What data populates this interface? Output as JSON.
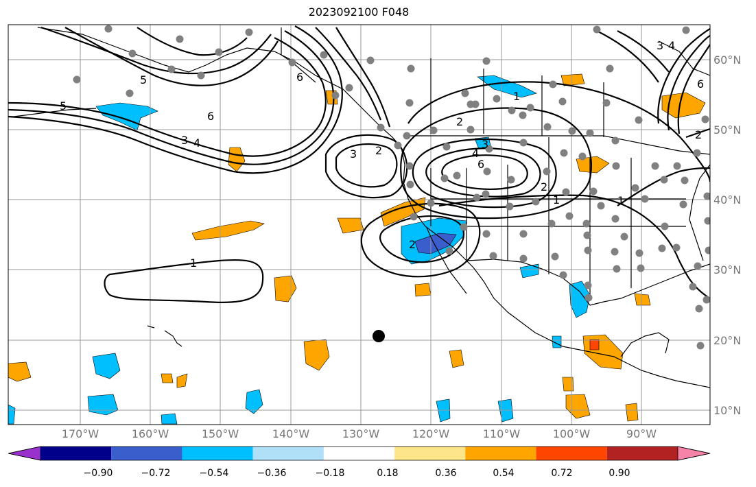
{
  "title": "2023092100 F048",
  "lat_labels": [
    "60°N",
    "50°N",
    "40°N",
    "30°N",
    "20°N",
    "10°N"
  ],
  "lon_labels": [
    "170°W",
    "160°W",
    "150°W",
    "140°W",
    "130°W",
    "120°W",
    "110°W",
    "100°W",
    "90°W"
  ],
  "colorbar": {
    "colors": [
      "#9932cc",
      "#00008b",
      "#3a5fcd",
      "#00bfff",
      "#b0e0f8",
      "#ffffff",
      "#fde68a",
      "#ffa500",
      "#ff4500",
      "#b22222",
      "#f784a8"
    ],
    "labels": [
      "−0.90",
      "−0.72",
      "−0.54",
      "−0.36",
      "−0.18",
      "0.18",
      "0.36",
      "0.54",
      "0.72",
      "0.90"
    ]
  },
  "contour_labels": [
    "1",
    "1",
    "1",
    "2",
    "2",
    "2",
    "2",
    "3",
    "3",
    "3",
    "3",
    "4",
    "4",
    "4",
    "5",
    "5",
    "6",
    "6",
    "6",
    "6",
    "2",
    "1"
  ],
  "colors": {
    "grid": "#999999",
    "coast": "#000000",
    "station": "#808080",
    "marker": "#000000"
  }
}
